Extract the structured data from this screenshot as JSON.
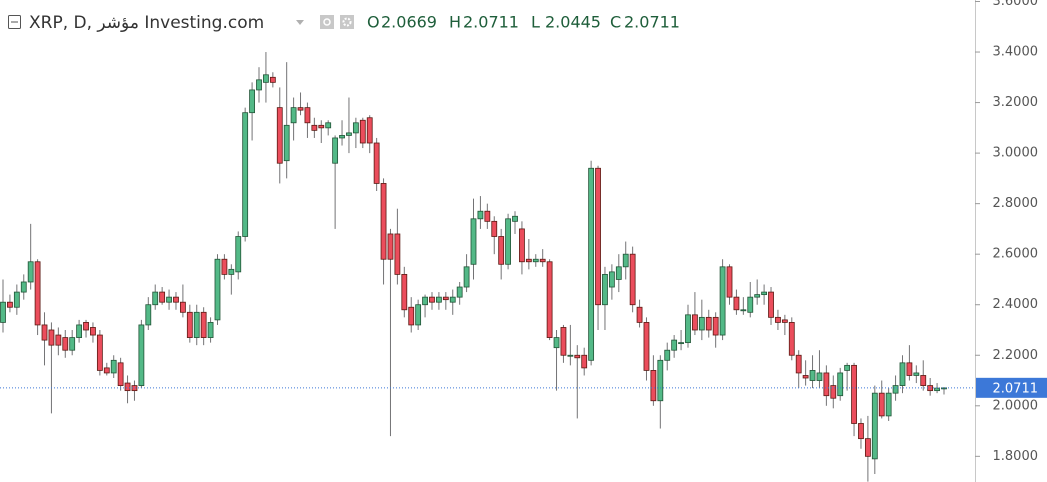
{
  "chart_data": {
    "type": "candlestick",
    "title": "XRP, D, مؤشر Investing.com",
    "ohlc_labels": [
      "O",
      "H",
      "L",
      "C"
    ],
    "ohlc_values": [
      2.0669,
      2.0711,
      2.0445,
      2.0711
    ],
    "last_price": 2.0711,
    "up_color": "#53b987",
    "down_color": "#eb4d5c",
    "ylim": [
      1.7,
      3.6
    ],
    "yticks": [
      {
        "value": 1.8,
        "label": "1.8000"
      },
      {
        "value": 2.0,
        "label": "2.0000"
      },
      {
        "value": 2.2,
        "label": "2.2000"
      },
      {
        "value": 2.4,
        "label": "2.4000"
      },
      {
        "value": 2.6,
        "label": "2.6000"
      },
      {
        "value": 2.8,
        "label": "2.8000"
      },
      {
        "value": 3.0,
        "label": "3.0000"
      },
      {
        "value": 3.2,
        "label": "3.2000"
      },
      {
        "value": 3.4,
        "label": "3.4000"
      },
      {
        "value": 3.6,
        "label": "3.6000"
      }
    ],
    "ohlc": [
      [
        2.33,
        2.5,
        2.29,
        2.41
      ],
      [
        2.41,
        2.44,
        2.37,
        2.39
      ],
      [
        2.39,
        2.48,
        2.36,
        2.45
      ],
      [
        2.45,
        2.52,
        2.42,
        2.49
      ],
      [
        2.49,
        2.72,
        2.46,
        2.57
      ],
      [
        2.57,
        2.58,
        2.28,
        2.32
      ],
      [
        2.32,
        2.37,
        2.16,
        2.26
      ],
      [
        2.3,
        2.33,
        1.97,
        2.24
      ],
      [
        2.28,
        2.31,
        2.2,
        2.24
      ],
      [
        2.27,
        2.3,
        2.19,
        2.22
      ],
      [
        2.22,
        2.3,
        2.2,
        2.27
      ],
      [
        2.27,
        2.34,
        2.25,
        2.32
      ],
      [
        2.33,
        2.34,
        2.27,
        2.3
      ],
      [
        2.31,
        2.33,
        2.25,
        2.28
      ],
      [
        2.28,
        2.3,
        2.12,
        2.14
      ],
      [
        2.15,
        2.17,
        2.12,
        2.13
      ],
      [
        2.13,
        2.2,
        2.11,
        2.18
      ],
      [
        2.17,
        2.19,
        2.06,
        2.08
      ],
      [
        2.09,
        2.12,
        2.01,
        2.06
      ],
      [
        2.08,
        2.1,
        2.02,
        2.06
      ],
      [
        2.08,
        2.34,
        2.07,
        2.32
      ],
      [
        2.32,
        2.43,
        2.3,
        2.4
      ],
      [
        2.4,
        2.48,
        2.38,
        2.45
      ],
      [
        2.45,
        2.47,
        2.4,
        2.41
      ],
      [
        2.41,
        2.46,
        2.38,
        2.43
      ],
      [
        2.43,
        2.45,
        2.38,
        2.41
      ],
      [
        2.41,
        2.48,
        2.35,
        2.37
      ],
      [
        2.37,
        2.4,
        2.25,
        2.27
      ],
      [
        2.27,
        2.4,
        2.24,
        2.37
      ],
      [
        2.37,
        2.39,
        2.24,
        2.27
      ],
      [
        2.27,
        2.35,
        2.25,
        2.33
      ],
      [
        2.34,
        2.6,
        2.32,
        2.58
      ],
      [
        2.58,
        2.6,
        2.5,
        2.52
      ],
      [
        2.52,
        2.56,
        2.44,
        2.54
      ],
      [
        2.53,
        2.69,
        2.5,
        2.67
      ],
      [
        2.67,
        3.18,
        2.65,
        3.16
      ],
      [
        3.16,
        3.28,
        3.05,
        3.25
      ],
      [
        3.25,
        3.34,
        3.2,
        3.29
      ],
      [
        3.28,
        3.4,
        3.2,
        3.31
      ],
      [
        3.3,
        3.32,
        3.26,
        3.28
      ],
      [
        3.18,
        3.26,
        2.88,
        2.96
      ],
      [
        2.97,
        3.36,
        2.9,
        3.11
      ],
      [
        3.12,
        3.22,
        3.05,
        3.18
      ],
      [
        3.18,
        3.24,
        3.15,
        3.17
      ],
      [
        3.18,
        3.2,
        3.06,
        3.12
      ],
      [
        3.11,
        3.14,
        3.06,
        3.09
      ],
      [
        3.11,
        3.13,
        3.04,
        3.1
      ],
      [
        3.1,
        3.13,
        3.07,
        3.12
      ],
      [
        2.96,
        3.07,
        2.7,
        3.06
      ],
      [
        3.06,
        3.13,
        3.03,
        3.07
      ],
      [
        3.07,
        3.22,
        3.0,
        3.08
      ],
      [
        3.08,
        3.14,
        3.02,
        3.12
      ],
      [
        3.13,
        3.14,
        3.02,
        3.04
      ],
      [
        3.14,
        3.15,
        3.0,
        3.04
      ],
      [
        3.04,
        3.06,
        2.85,
        2.88
      ],
      [
        2.88,
        2.9,
        2.48,
        2.58
      ],
      [
        2.68,
        2.7,
        1.88,
        2.58
      ],
      [
        2.68,
        2.78,
        2.48,
        2.52
      ],
      [
        2.52,
        2.55,
        2.35,
        2.38
      ],
      [
        2.39,
        2.43,
        2.29,
        2.32
      ],
      [
        2.32,
        2.42,
        2.3,
        2.4
      ],
      [
        2.4,
        2.44,
        2.35,
        2.43
      ],
      [
        2.43,
        2.45,
        2.38,
        2.41
      ],
      [
        2.41,
        2.45,
        2.38,
        2.43
      ],
      [
        2.43,
        2.45,
        2.38,
        2.42
      ],
      [
        2.41,
        2.46,
        2.36,
        2.43
      ],
      [
        2.43,
        2.49,
        2.4,
        2.47
      ],
      [
        2.47,
        2.6,
        2.45,
        2.55
      ],
      [
        2.56,
        2.82,
        2.5,
        2.74
      ],
      [
        2.74,
        2.83,
        2.7,
        2.77
      ],
      [
        2.77,
        2.8,
        2.7,
        2.73
      ],
      [
        2.73,
        2.75,
        2.6,
        2.67
      ],
      [
        2.67,
        2.7,
        2.5,
        2.56
      ],
      [
        2.56,
        2.76,
        2.54,
        2.74
      ],
      [
        2.73,
        2.77,
        2.68,
        2.75
      ],
      [
        2.7,
        2.73,
        2.52,
        2.57
      ],
      [
        2.58,
        2.66,
        2.54,
        2.57
      ],
      [
        2.57,
        2.6,
        2.55,
        2.58
      ],
      [
        2.58,
        2.62,
        2.55,
        2.57
      ],
      [
        2.57,
        2.58,
        2.26,
        2.27
      ],
      [
        2.23,
        2.3,
        2.06,
        2.27
      ],
      [
        2.31,
        2.32,
        2.17,
        2.2
      ],
      [
        2.2,
        2.32,
        2.16,
        2.2
      ],
      [
        2.2,
        2.24,
        1.95,
        2.19
      ],
      [
        2.2,
        2.23,
        2.12,
        2.15
      ],
      [
        2.18,
        2.97,
        2.16,
        2.94
      ],
      [
        2.94,
        2.95,
        2.3,
        2.4
      ],
      [
        2.4,
        2.55,
        2.3,
        2.52
      ],
      [
        2.47,
        2.56,
        2.42,
        2.53
      ],
      [
        2.5,
        2.6,
        2.45,
        2.55
      ],
      [
        2.55,
        2.65,
        2.5,
        2.6
      ],
      [
        2.6,
        2.63,
        2.37,
        2.4
      ],
      [
        2.39,
        2.42,
        2.31,
        2.33
      ],
      [
        2.33,
        2.35,
        2.1,
        2.14
      ],
      [
        2.14,
        2.2,
        2.0,
        2.02
      ],
      [
        2.02,
        2.2,
        1.91,
        2.18
      ],
      [
        2.18,
        2.25,
        2.14,
        2.22
      ],
      [
        2.22,
        2.28,
        2.19,
        2.26
      ],
      [
        2.25,
        2.3,
        2.22,
        2.25
      ],
      [
        2.25,
        2.4,
        2.23,
        2.36
      ],
      [
        2.36,
        2.45,
        2.28,
        2.3
      ],
      [
        2.3,
        2.42,
        2.26,
        2.35
      ],
      [
        2.35,
        2.38,
        2.27,
        2.3
      ],
      [
        2.35,
        2.37,
        2.23,
        2.28
      ],
      [
        2.28,
        2.58,
        2.26,
        2.55
      ],
      [
        2.55,
        2.56,
        2.4,
        2.43
      ],
      [
        2.43,
        2.46,
        2.36,
        2.38
      ],
      [
        2.38,
        2.43,
        2.36,
        2.38
      ],
      [
        2.37,
        2.49,
        2.35,
        2.43
      ],
      [
        2.43,
        2.5,
        2.4,
        2.44
      ],
      [
        2.44,
        2.48,
        2.4,
        2.45
      ],
      [
        2.45,
        2.47,
        2.32,
        2.35
      ],
      [
        2.35,
        2.38,
        2.3,
        2.33
      ],
      [
        2.34,
        2.36,
        2.28,
        2.33
      ],
      [
        2.33,
        2.35,
        2.18,
        2.2
      ],
      [
        2.2,
        2.22,
        2.07,
        2.13
      ],
      [
        2.12,
        2.18,
        2.08,
        2.11
      ],
      [
        2.1,
        2.2,
        2.07,
        2.14
      ],
      [
        2.1,
        2.22,
        2.07,
        2.13
      ],
      [
        2.13,
        2.16,
        2.0,
        2.04
      ],
      [
        2.08,
        2.12,
        1.99,
        2.03
      ],
      [
        2.04,
        2.15,
        2.02,
        2.13
      ],
      [
        2.14,
        2.17,
        2.06,
        2.16
      ],
      [
        2.16,
        2.17,
        1.88,
        1.93
      ],
      [
        1.93,
        1.95,
        1.83,
        1.87
      ],
      [
        1.87,
        1.96,
        1.7,
        1.8
      ],
      [
        1.79,
        2.08,
        1.73,
        2.05
      ],
      [
        2.05,
        2.1,
        1.95,
        1.96
      ],
      [
        1.96,
        2.07,
        1.94,
        2.05
      ],
      [
        2.05,
        2.12,
        2.02,
        2.08
      ],
      [
        2.08,
        2.2,
        2.05,
        2.17
      ],
      [
        2.17,
        2.24,
        2.1,
        2.12
      ],
      [
        2.12,
        2.16,
        2.09,
        2.13
      ],
      [
        2.12,
        2.18,
        2.06,
        2.08
      ],
      [
        2.08,
        2.11,
        2.04,
        2.06
      ],
      [
        2.06,
        2.09,
        2.05,
        2.07
      ],
      [
        2.0669,
        2.0711,
        2.0445,
        2.0711
      ]
    ]
  }
}
